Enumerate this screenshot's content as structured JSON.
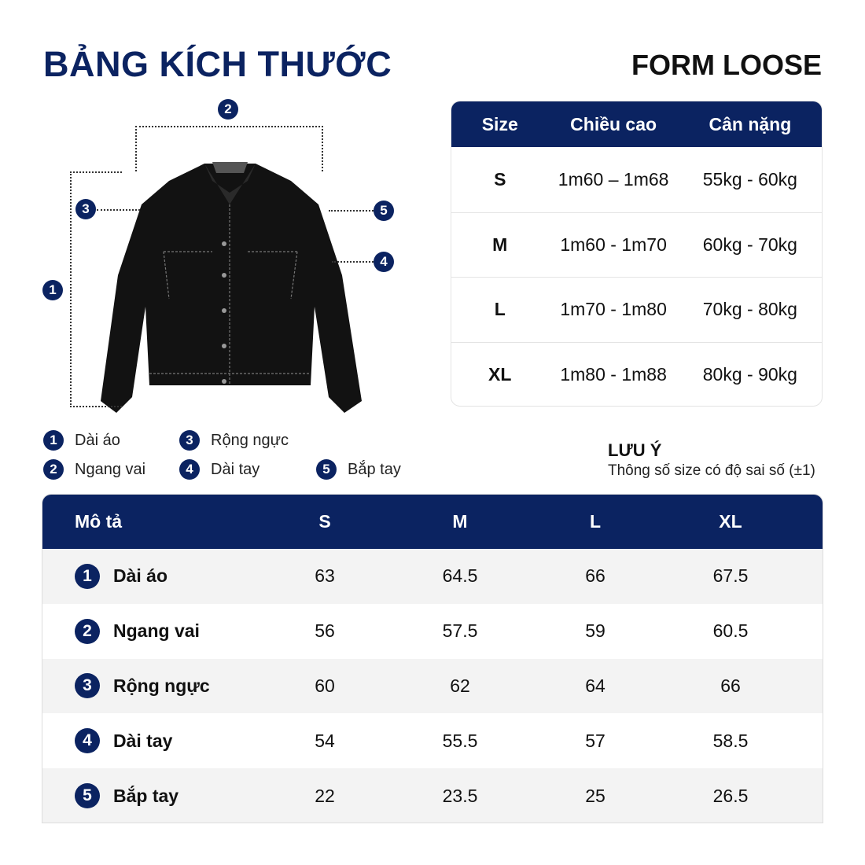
{
  "title": "BẢNG KÍCH THƯỚC",
  "form": "FORM LOOSE",
  "brand_color": "#0b2361",
  "diagram": {
    "markers": [
      "1",
      "2",
      "3",
      "4",
      "5"
    ]
  },
  "size_table": {
    "headers": [
      "Size",
      "Chiều cao",
      "Cân nặng"
    ],
    "rows": [
      [
        "S",
        "1m60 – 1m68",
        "55kg - 60kg"
      ],
      [
        "M",
        "1m60 - 1m70",
        "60kg - 70kg"
      ],
      [
        "L",
        "1m70 - 1m80",
        "70kg - 80kg"
      ],
      [
        "XL",
        "1m80 - 1m88",
        "80kg - 90kg"
      ]
    ]
  },
  "legend": [
    {
      "n": "1",
      "label": "Dài áo"
    },
    {
      "n": "2",
      "label": "Ngang vai"
    },
    {
      "n": "3",
      "label": "Rộng ngực"
    },
    {
      "n": "4",
      "label": "Dài tay"
    },
    {
      "n": "5",
      "label": "Bắp tay"
    }
  ],
  "note": {
    "title": "LƯU Ý",
    "text": "Thông số size có độ sai số (±1)"
  },
  "measure_table": {
    "headers": [
      "Mô tả",
      "S",
      "M",
      "L",
      "XL"
    ],
    "rows": [
      {
        "n": "1",
        "label": "Dài áo",
        "values": [
          "63",
          "64.5",
          "66",
          "67.5"
        ]
      },
      {
        "n": "2",
        "label": "Ngang vai",
        "values": [
          "56",
          "57.5",
          "59",
          "60.5"
        ]
      },
      {
        "n": "3",
        "label": "Rộng ngực",
        "values": [
          "60",
          "62",
          "64",
          "66"
        ]
      },
      {
        "n": "4",
        "label": "Dài tay",
        "values": [
          "54",
          "55.5",
          "57",
          "58.5"
        ]
      },
      {
        "n": "5",
        "label": "Bắp tay",
        "values": [
          "22",
          "23.5",
          "25",
          "26.5"
        ]
      }
    ]
  }
}
